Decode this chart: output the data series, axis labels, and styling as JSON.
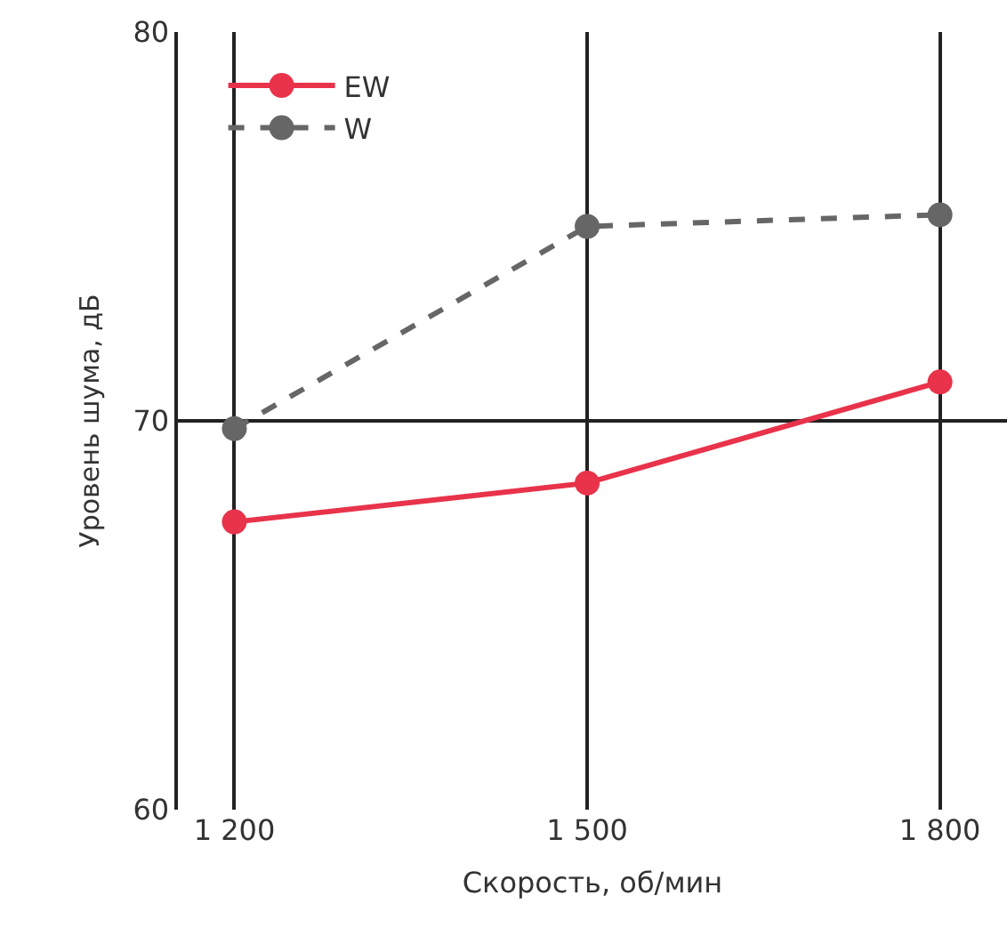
{
  "chart_data": {
    "type": "line",
    "xlabel": "Скорость, об/мин",
    "ylabel": "Уровень шума, дБ",
    "categories": [
      "1 200",
      "1 500",
      "1 800"
    ],
    "series": [
      {
        "name": "EW",
        "color": "#e8334a",
        "values": [
          67.4,
          68.4,
          71.0
        ],
        "line_style": "solid"
      },
      {
        "name": "W",
        "color": "#666666",
        "values": [
          69.8,
          75.0,
          75.3
        ],
        "line_style": "dashed"
      }
    ],
    "ylim": [
      60,
      80
    ],
    "yticks": [
      60,
      70,
      80
    ],
    "grid": true,
    "legend": "top left",
    "marker": "circle"
  }
}
